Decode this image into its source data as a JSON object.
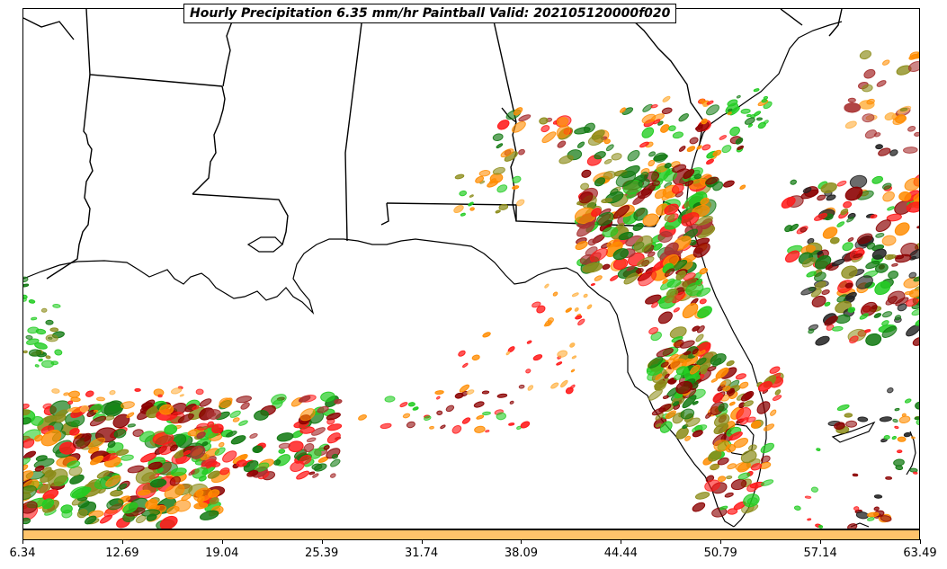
{
  "title": "Hourly Precipitation 6.35 mm/hr Paintball Valid: 202105120000f020",
  "colorbar": {
    "color": "#ffc36b",
    "ticks": [
      "6.34",
      "12.69",
      "19.04",
      "25.39",
      "31.74",
      "38.09",
      "44.44",
      "50.79",
      "57.14",
      "63.49"
    ]
  },
  "palette": {
    "green": "#22cc22",
    "dark_green": "#137a13",
    "olive": "#8c8c1a",
    "orange": "#ff8c00",
    "light_orange": "#ffb347",
    "red": "#ff1a1a",
    "dark_red": "#8b0000",
    "brownish_red": "#a83232",
    "black": "#222222"
  }
}
